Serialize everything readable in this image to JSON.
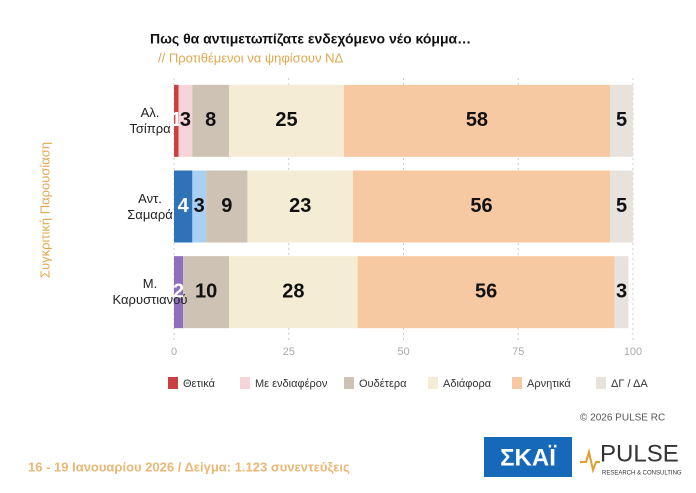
{
  "chart_data": {
    "type": "stacked_bar_horizontal",
    "title": "Πως θα αντιμετωπίζατε ενδεχόμενο νέο κόμμα…",
    "subtitle": "// Προτιθέμενοι να ψηφίσουν ΝΔ",
    "y_label": "Συγκριτική Παρουσίαση",
    "categories": [
      "Αλ.\nΤσίπρα",
      "Αντ.\nΣαμαρά",
      "Μ.\nΚαρυστιανού"
    ],
    "series": [
      {
        "name": "Θετικά",
        "color": "#c94040",
        "colors": [
          "#c94040",
          "#2f72b8",
          "#8f6fbd"
        ],
        "values": [
          1,
          4,
          2
        ]
      },
      {
        "name": "Με ενδιαφέρον",
        "color": "#f7d3da",
        "colors": [
          "#f7d3da",
          "#a9d0f2",
          "#cdb8e2"
        ],
        "values": [
          3,
          3,
          null
        ]
      },
      {
        "name": "Ουδέτερα",
        "color": "#cdc2b4",
        "values": [
          8,
          9,
          10
        ]
      },
      {
        "name": "Αδιάφορα",
        "color": "#f4ecd5",
        "values": [
          25,
          23,
          28
        ]
      },
      {
        "name": "Αρνητικά",
        "color": "#f7c9a2",
        "values": [
          58,
          56,
          56
        ]
      },
      {
        "name": "ΔΓ / ΔΑ",
        "color": "#e7e2db",
        "values": [
          5,
          5,
          3
        ]
      }
    ],
    "xlim": [
      0,
      100
    ],
    "xticks": [
      0,
      25,
      50,
      75,
      100
    ],
    "grid": true,
    "legend": "bottom",
    "source_note": "16 - 19 Ιανουαρίου 2026  /  Δείγμα:  1.123 συνεντεύξεις",
    "copyright": "© 2026 PULSE RC",
    "logos": [
      "ΣΚΑΪ",
      "PULSE",
      "RESEARCH & CONSULTING"
    ]
  }
}
